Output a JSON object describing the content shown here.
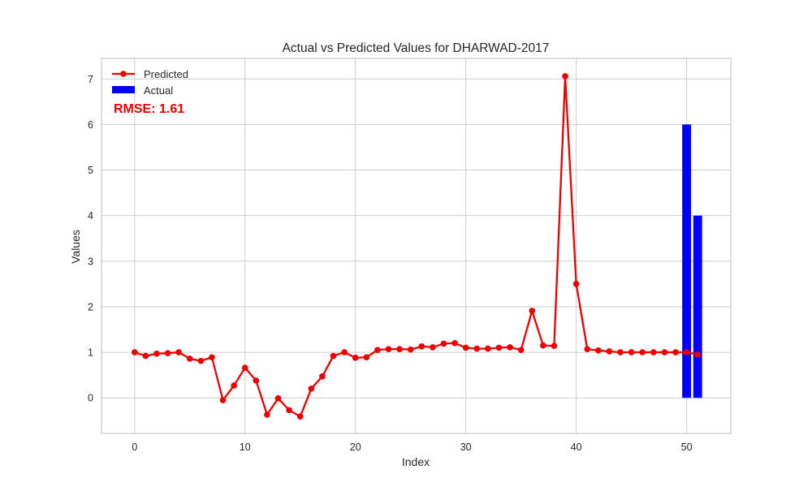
{
  "chart_data": {
    "type": "line",
    "title": "Actual vs Predicted Values for DHARWAD-2017",
    "xlabel": "Index",
    "ylabel": "Values",
    "xlim": [
      -3,
      54
    ],
    "ylim": [
      -0.78,
      7.45
    ],
    "xticks": [
      0,
      10,
      20,
      30,
      40,
      50
    ],
    "yticks": [
      0,
      1,
      2,
      3,
      4,
      5,
      6,
      7
    ],
    "grid": true,
    "legend_position": "top-left",
    "annotation": "RMSE: 1.61",
    "series": [
      {
        "name": "Predicted",
        "kind": "line",
        "color": "#ee0000",
        "x": [
          0,
          1,
          2,
          3,
          4,
          5,
          6,
          7,
          8,
          9,
          10,
          11,
          12,
          13,
          14,
          15,
          16,
          17,
          18,
          19,
          20,
          21,
          22,
          23,
          24,
          25,
          26,
          27,
          28,
          29,
          30,
          31,
          32,
          33,
          34,
          35,
          36,
          37,
          38,
          39,
          40,
          41,
          42,
          43,
          44,
          45,
          46,
          47,
          48,
          49,
          50,
          51
        ],
        "values": [
          1.0,
          0.92,
          0.97,
          0.98,
          1.0,
          0.86,
          0.81,
          0.89,
          -0.05,
          0.27,
          0.66,
          0.38,
          -0.37,
          -0.01,
          -0.27,
          -0.41,
          0.2,
          0.47,
          0.92,
          1.0,
          0.88,
          0.89,
          1.05,
          1.07,
          1.07,
          1.06,
          1.13,
          1.11,
          1.19,
          1.2,
          1.1,
          1.08,
          1.08,
          1.1,
          1.11,
          1.05,
          1.91,
          1.15,
          1.14,
          7.06,
          2.5,
          1.07,
          1.04,
          1.02,
          1.0,
          1.0,
          1.0,
          1.0,
          1.0,
          1.0,
          1.0,
          0.95
        ]
      },
      {
        "name": "Actual",
        "kind": "bar",
        "color": "#0000ff",
        "x": [
          50,
          51
        ],
        "values": [
          6,
          4
        ]
      }
    ]
  }
}
